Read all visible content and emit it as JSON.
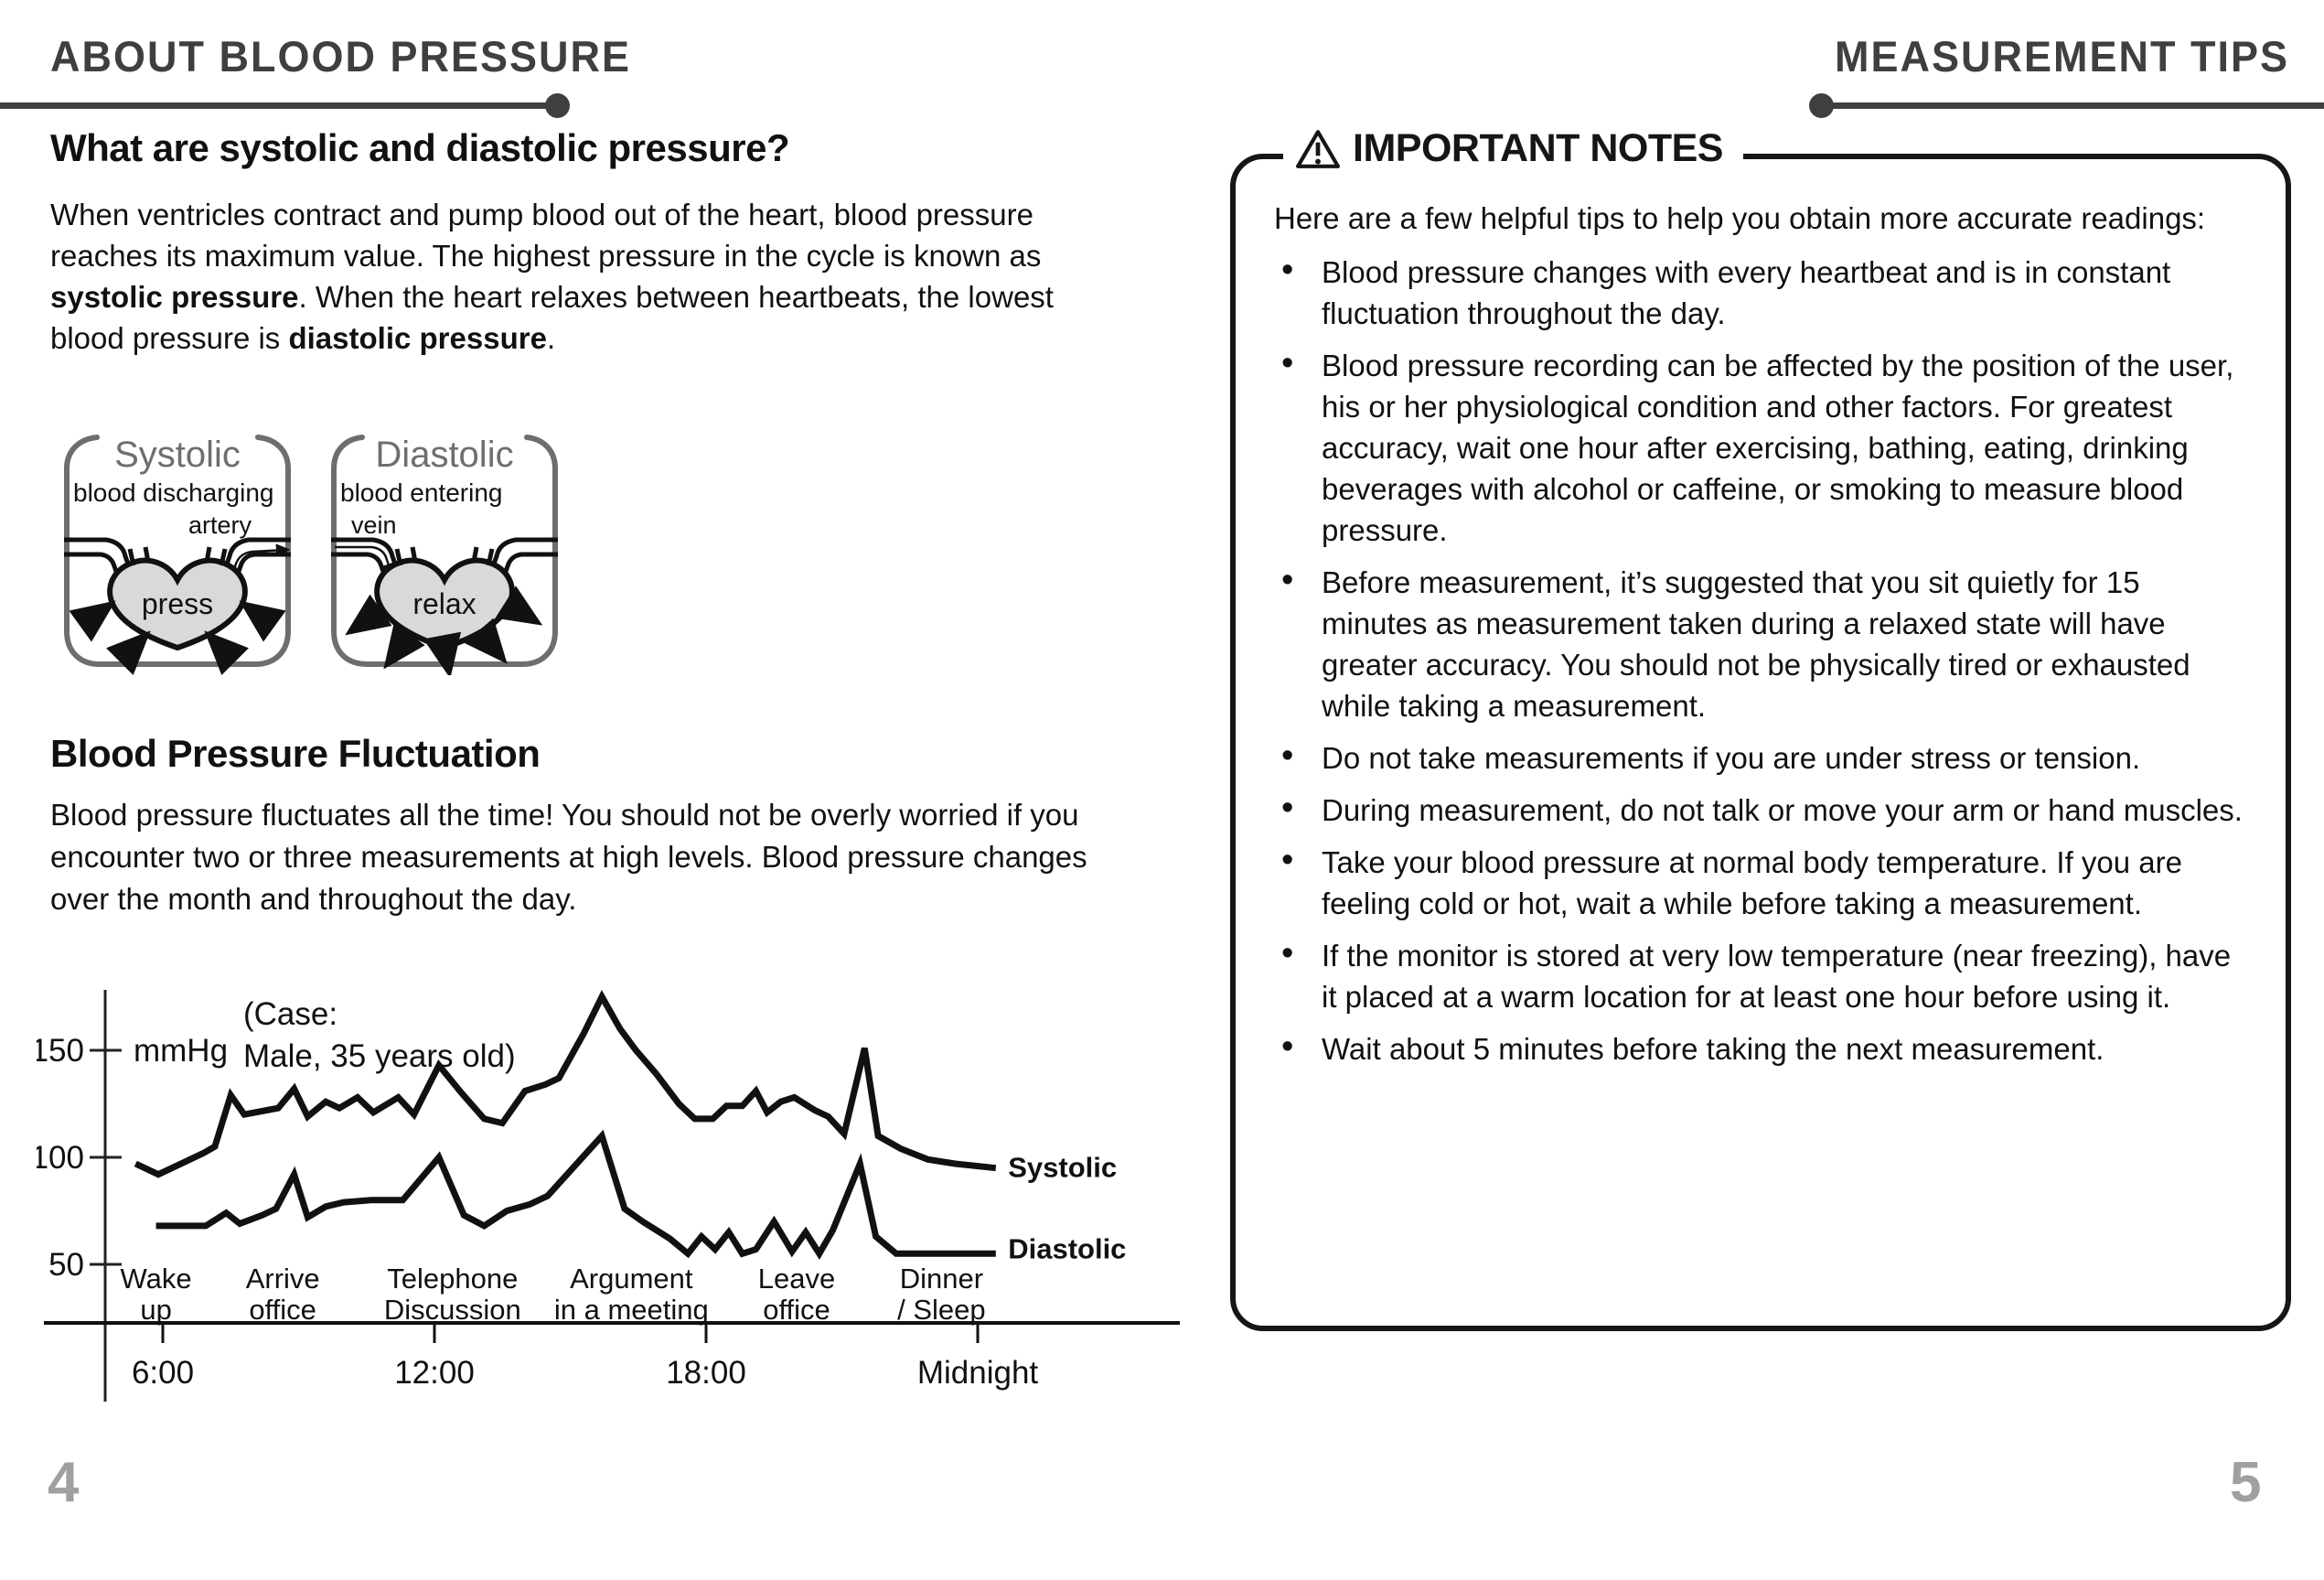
{
  "page": {
    "left_header": "ABOUT BLOOD PRESSURE",
    "right_header": "MEASUREMENT TIPS",
    "left_page_number": "4",
    "right_page_number": "5"
  },
  "left": {
    "heading": "What are systolic and diastolic pressure?",
    "intro": {
      "part1": "When ventricles contract and pump blood out of the heart, blood pressure reaches its maximum value. The highest pressure in the cycle is known as ",
      "bold1": "systolic pressure",
      "part2": ". When the heart relaxes between heartbeats, the lowest blood pressure is ",
      "bold2": "diastolic pressure",
      "part3": "."
    },
    "diagrams": {
      "systolic": {
        "title": "Systolic",
        "caption": "blood discharging",
        "vessel_label": "artery",
        "heart_label": "press"
      },
      "diastolic": {
        "title": "Diastolic",
        "caption": "blood entering",
        "vessel_label": "vein",
        "heart_label": "relax"
      }
    },
    "fluctuation": {
      "heading": "Blood Pressure Fluctuation",
      "body": "Blood pressure fluctuates all the time! You should not be overly worried if you encounter two or three measurements at high levels. Blood pressure changes over the month and throughout the day."
    }
  },
  "notes": {
    "title": "IMPORTANT NOTES",
    "intro": "Here are a few helpful tips to help you obtain more accurate readings:",
    "bullets": [
      "Blood pressure changes with every heartbeat and is in constant fluctuation throughout the day.",
      "Blood pressure recording can be affected by the position of the user, his or her physiological condition and other factors. For greatest accuracy, wait one hour after exercising, bathing, eating, drinking beverages with alcohol or caffeine, or smoking to measure blood pressure.",
      "Before measurement, it’s suggested that you sit quietly for 15 minutes as measurement taken during a relaxed state will have greater accuracy. You should not be physically tired or exhausted while taking a measurement.",
      "Do not take measurements if you are under stress or tension.",
      "During measurement, do not talk or move your arm or hand muscles.",
      "Take your blood pressure at normal body temperature. If you are feeling cold or hot, wait a while before taking a measurement.",
      "If the monitor is stored at very low temperature (near freezing), have it placed at a warm location for at least one hour before using it.",
      "Wait about 5 minutes before taking the next measurement."
    ]
  },
  "chart_data": {
    "type": "line",
    "title": "Blood Pressure Fluctuation (Case: Male, 35 years old)",
    "unit_label": "mmHg",
    "annotation_lines": [
      "(Case:",
      "Male, 35 years old)"
    ],
    "x_axis": {
      "ticks": [
        {
          "hour": 6,
          "label": "6:00"
        },
        {
          "hour": 12,
          "label": "12:00"
        },
        {
          "hour": 18,
          "label": "18:00"
        },
        {
          "hour": 24,
          "label": "Midnight"
        }
      ]
    },
    "y_axis": {
      "ticks": [
        150,
        100,
        50
      ],
      "ylim": [
        45,
        185
      ]
    },
    "grid": false,
    "events": [
      {
        "hour": 5.85,
        "lines": [
          "Wake",
          "up"
        ]
      },
      {
        "hour": 8.65,
        "lines": [
          "Arrive",
          "office"
        ]
      },
      {
        "hour": 12.4,
        "lines": [
          "Telephone",
          "Discussion"
        ]
      },
      {
        "hour": 16.35,
        "lines": [
          "Argument",
          "in a meeting"
        ]
      },
      {
        "hour": 20.0,
        "lines": [
          "Leave",
          "office"
        ]
      },
      {
        "hour": 23.2,
        "lines": [
          "Dinner",
          "/ Sleep"
        ]
      }
    ],
    "series": [
      {
        "name": "Systolic",
        "label_at": [
          24.55,
          95
        ],
        "points": [
          [
            5.4,
            97
          ],
          [
            5.9,
            92
          ],
          [
            6.9,
            102
          ],
          [
            7.15,
            105
          ],
          [
            7.5,
            129
          ],
          [
            7.8,
            120
          ],
          [
            8.3,
            122
          ],
          [
            8.55,
            123
          ],
          [
            8.9,
            132
          ],
          [
            9.2,
            119
          ],
          [
            9.6,
            126
          ],
          [
            9.9,
            123
          ],
          [
            10.3,
            128
          ],
          [
            10.65,
            121
          ],
          [
            11.2,
            128
          ],
          [
            11.55,
            120
          ],
          [
            12.1,
            143
          ],
          [
            12.6,
            130
          ],
          [
            13.1,
            118
          ],
          [
            13.5,
            116
          ],
          [
            14.0,
            131
          ],
          [
            14.45,
            134
          ],
          [
            14.75,
            137
          ],
          [
            15.3,
            158
          ],
          [
            15.7,
            175
          ],
          [
            16.1,
            160
          ],
          [
            16.45,
            150
          ],
          [
            16.9,
            139
          ],
          [
            17.4,
            125
          ],
          [
            17.75,
            118
          ],
          [
            18.15,
            118
          ],
          [
            18.45,
            124
          ],
          [
            18.8,
            124
          ],
          [
            19.1,
            131
          ],
          [
            19.35,
            121
          ],
          [
            19.65,
            126
          ],
          [
            19.95,
            128
          ],
          [
            20.4,
            122
          ],
          [
            20.7,
            119
          ],
          [
            21.05,
            111
          ],
          [
            21.5,
            151
          ],
          [
            21.8,
            110
          ],
          [
            22.3,
            104
          ],
          [
            22.9,
            99
          ],
          [
            23.5,
            97
          ],
          [
            24.4,
            95
          ]
        ]
      },
      {
        "name": "Diastolic",
        "label_at": [
          24.55,
          57
        ],
        "points": [
          [
            5.85,
            68
          ],
          [
            6.95,
            68
          ],
          [
            7.4,
            74
          ],
          [
            7.7,
            69
          ],
          [
            8.2,
            73
          ],
          [
            8.5,
            76
          ],
          [
            8.9,
            92
          ],
          [
            9.2,
            72
          ],
          [
            9.6,
            77
          ],
          [
            10.0,
            79
          ],
          [
            10.6,
            80
          ],
          [
            11.3,
            80
          ],
          [
            12.1,
            100
          ],
          [
            12.65,
            73
          ],
          [
            13.1,
            68
          ],
          [
            13.6,
            75
          ],
          [
            14.1,
            78
          ],
          [
            14.5,
            82
          ],
          [
            15.7,
            110
          ],
          [
            16.2,
            76
          ],
          [
            16.6,
            70
          ],
          [
            17.2,
            62
          ],
          [
            17.6,
            55
          ],
          [
            17.9,
            63
          ],
          [
            18.2,
            57
          ],
          [
            18.5,
            65
          ],
          [
            18.8,
            55
          ],
          [
            19.1,
            57
          ],
          [
            19.5,
            70
          ],
          [
            19.9,
            56
          ],
          [
            20.2,
            65
          ],
          [
            20.5,
            55
          ],
          [
            20.8,
            66
          ],
          [
            21.4,
            97
          ],
          [
            21.75,
            63
          ],
          [
            22.2,
            55
          ],
          [
            24.4,
            55
          ]
        ]
      }
    ]
  }
}
